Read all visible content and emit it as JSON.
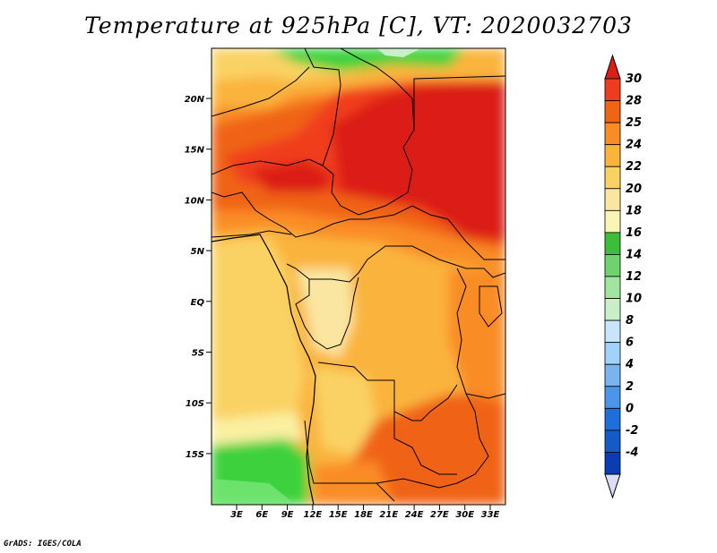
{
  "title": "Temperature at 925hPa [C], VT: 2020032703",
  "credit": "GrADS: IGES/COLA",
  "map": {
    "lat_ticks": [
      "20N",
      "15N",
      "10N",
      "5N",
      "EQ",
      "5S",
      "10S",
      "15S"
    ],
    "lon_ticks": [
      "3E",
      "6E",
      "9E",
      "12E",
      "15E",
      "18E",
      "21E",
      "24E",
      "27E",
      "30E",
      "33E"
    ],
    "colors": {
      "deep_red": "#dc1e14",
      "red": "#f03c1e",
      "orange_red": "#f06414",
      "orange": "#fa8c28",
      "light_orange": "#fab43c",
      "yellow_orange": "#fad264",
      "pale_yellow": "#faf0a0",
      "green": "#3cd23c",
      "light_green": "#78e678",
      "boundary": "#000000"
    }
  },
  "colorbar": {
    "labels": [
      "30",
      "28",
      "25",
      "24",
      "22",
      "20",
      "18",
      "16",
      "14",
      "12",
      "10",
      "8",
      "6",
      "4",
      "2",
      "0",
      "-2",
      "-4"
    ],
    "colors": [
      "#dc1e14",
      "#f03c1e",
      "#f06414",
      "#fa8c28",
      "#fab43c",
      "#fad264",
      "#fae6a0",
      "#faf5b4",
      "#3cbe3c",
      "#6ed26e",
      "#a0e6a0",
      "#c8f0c8",
      "#c8e6fa",
      "#a0d2fa",
      "#78b4f0",
      "#4b96eb",
      "#1e6edc",
      "#145ac8",
      "#0a3cb4",
      "#0a1e78"
    ]
  }
}
